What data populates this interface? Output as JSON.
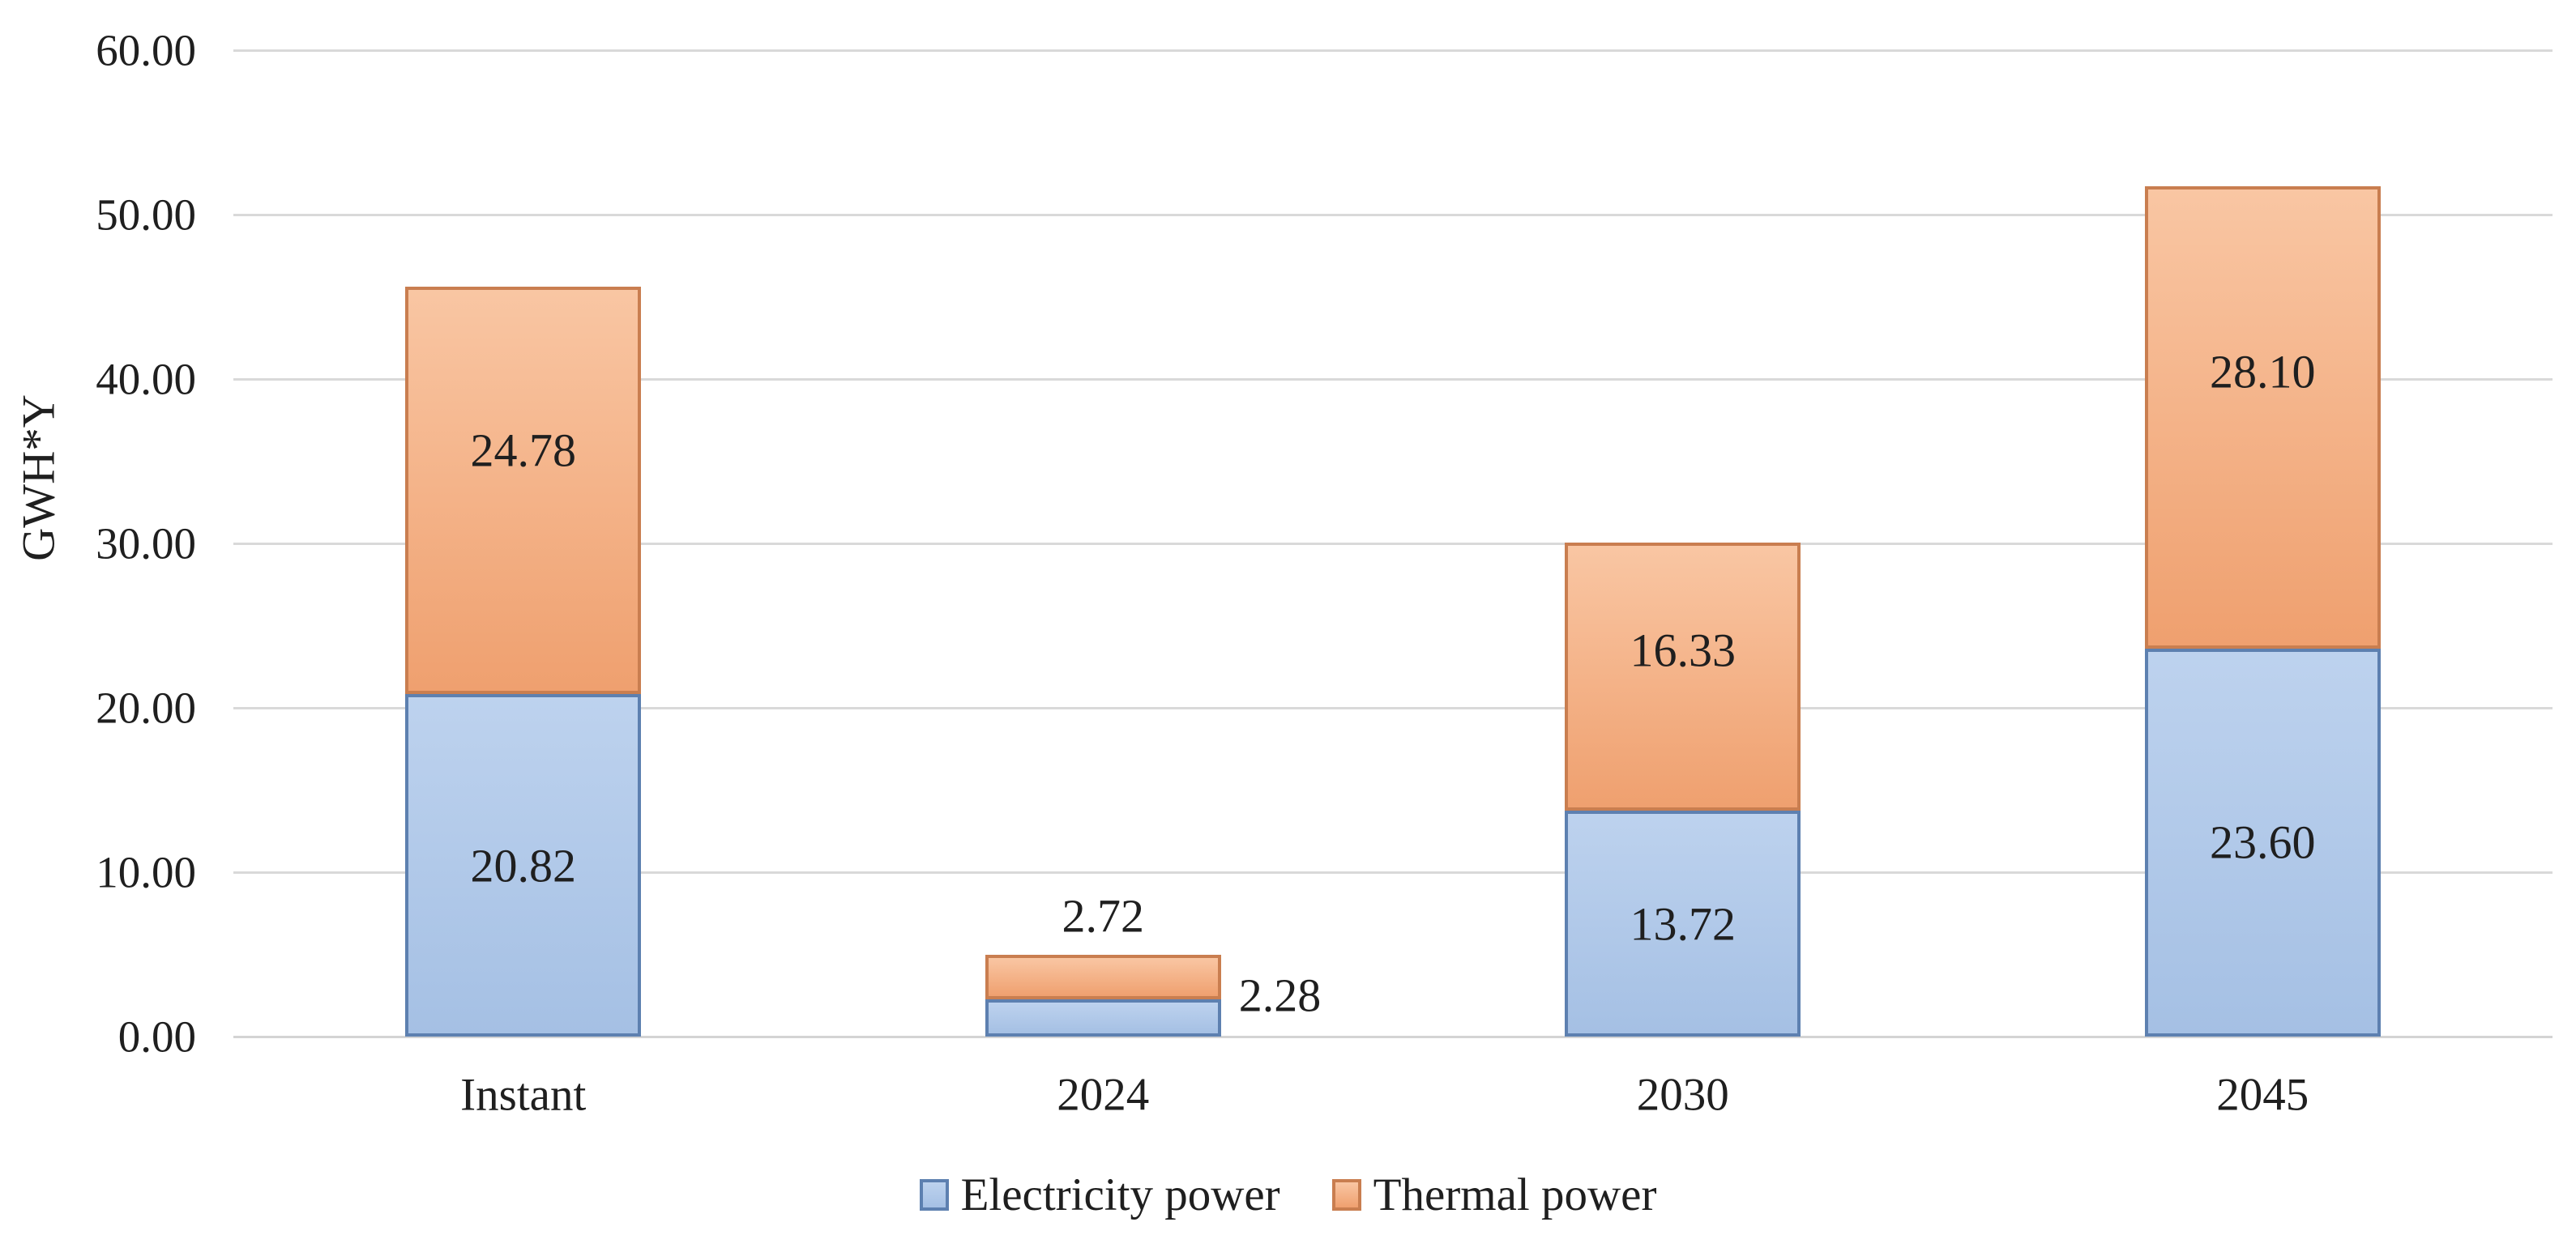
{
  "chart_data": {
    "type": "bar",
    "stacked": true,
    "title": "",
    "categories": [
      "Instant",
      "2024",
      "2030",
      "2045"
    ],
    "series": [
      {
        "name": "Electricity power",
        "values": [
          20.82,
          2.28,
          13.72,
          23.6
        ],
        "fill_top": "#bdd2ee",
        "fill_bottom": "#a5c0e4",
        "border": "#5d80b0"
      },
      {
        "name": "Thermal power",
        "values": [
          24.78,
          2.72,
          16.33,
          28.1
        ],
        "fill_top": "#f9c6a3",
        "fill_bottom": "#efa06f",
        "border": "#c97e50"
      }
    ],
    "ylabel": "GWH*Y",
    "ylim": [
      0,
      60
    ],
    "ytick_step": 10,
    "ytick_labels": [
      "0.00",
      "10.00",
      "20.00",
      "30.00",
      "40.00",
      "50.00",
      "60.00"
    ],
    "value_format_decimals": 2,
    "grid": true,
    "gridline_color": "#d9d9d9",
    "axis_line_color": "#d4d4d4",
    "label_color": "#1f1f1f",
    "legend_position": "bottom",
    "background": "#ffffff"
  }
}
